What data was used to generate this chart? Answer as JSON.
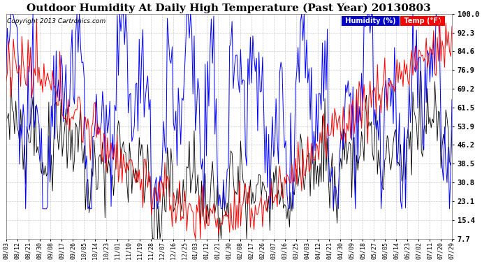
{
  "title": "Outdoor Humidity At Daily High Temperature (Past Year) 20130803",
  "copyright": "Copyright 2013 Cartronics.com",
  "legend_humidity": "Humidity (%)",
  "legend_temp": "Temp (°F)",
  "yticks": [
    7.7,
    15.4,
    23.1,
    30.8,
    38.5,
    46.2,
    53.9,
    61.5,
    69.2,
    76.9,
    84.6,
    92.3,
    100.0
  ],
  "ylim": [
    7.7,
    100.0
  ],
  "background_color": "#ffffff",
  "grid_color": "#c0c0c0",
  "humidity_color": "#0000ff",
  "temp_color": "#ff0000",
  "black_color": "#000000",
  "title_fontsize": 11,
  "legend_bg_humidity": "#0000cc",
  "legend_bg_temp": "#ff0000",
  "xtick_labels": [
    "08/03",
    "08/12",
    "08/21",
    "08/30",
    "09/08",
    "09/17",
    "09/26",
    "10/05",
    "10/14",
    "10/23",
    "11/01",
    "11/10",
    "11/19",
    "11/28",
    "12/07",
    "12/16",
    "12/25",
    "01/03",
    "01/12",
    "01/21",
    "01/30",
    "02/08",
    "02/17",
    "02/26",
    "03/07",
    "03/16",
    "03/25",
    "04/03",
    "04/12",
    "04/21",
    "04/30",
    "05/09",
    "05/18",
    "05/27",
    "06/05",
    "06/14",
    "06/23",
    "07/02",
    "07/11",
    "07/20",
    "07/29"
  ]
}
